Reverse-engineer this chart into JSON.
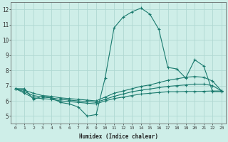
{
  "xlabel": "Humidex (Indice chaleur)",
  "ylabel": "",
  "background_color": "#ceeee8",
  "grid_color": "#b0d8d2",
  "line_color": "#1a7a6e",
  "xlim": [
    -0.5,
    23.5
  ],
  "ylim": [
    4.5,
    12.5
  ],
  "yticks": [
    5,
    6,
    7,
    8,
    9,
    10,
    11,
    12
  ],
  "xticks": [
    0,
    1,
    2,
    3,
    4,
    5,
    6,
    7,
    8,
    9,
    10,
    11,
    12,
    13,
    14,
    15,
    16,
    17,
    18,
    19,
    20,
    21,
    22,
    23
  ],
  "lines": [
    {
      "x": [
        0,
        1,
        2,
        3,
        4,
        5,
        6,
        7,
        8,
        9,
        10,
        11,
        12,
        13,
        14,
        15,
        16,
        17,
        18,
        19,
        20,
        21,
        22,
        23
      ],
      "y": [
        6.8,
        6.8,
        6.1,
        6.3,
        6.2,
        5.9,
        5.8,
        5.6,
        5.0,
        5.1,
        7.5,
        10.8,
        11.5,
        11.85,
        12.1,
        11.7,
        10.7,
        8.2,
        8.1,
        7.5,
        8.7,
        8.3,
        6.6,
        6.6
      ]
    },
    {
      "x": [
        0,
        1,
        2,
        3,
        4,
        5,
        6,
        7,
        8,
        9,
        10,
        11,
        12,
        13,
        14,
        15,
        16,
        17,
        18,
        19,
        20,
        21,
        22,
        23
      ],
      "y": [
        6.8,
        6.5,
        6.2,
        6.15,
        6.1,
        6.0,
        5.95,
        5.9,
        5.85,
        5.8,
        6.0,
        6.15,
        6.25,
        6.35,
        6.45,
        6.5,
        6.55,
        6.6,
        6.6,
        6.62,
        6.62,
        6.63,
        6.65,
        6.65
      ]
    },
    {
      "x": [
        0,
        1,
        2,
        3,
        4,
        5,
        6,
        7,
        8,
        9,
        10,
        11,
        12,
        13,
        14,
        15,
        16,
        17,
        18,
        19,
        20,
        21,
        22,
        23
      ],
      "y": [
        6.8,
        6.6,
        6.35,
        6.25,
        6.2,
        6.1,
        6.05,
        6.0,
        5.95,
        5.9,
        6.1,
        6.3,
        6.45,
        6.6,
        6.7,
        6.78,
        6.87,
        6.95,
        7.0,
        7.05,
        7.1,
        7.1,
        7.0,
        6.65
      ]
    },
    {
      "x": [
        0,
        1,
        2,
        3,
        4,
        5,
        6,
        7,
        8,
        9,
        10,
        11,
        12,
        13,
        14,
        15,
        16,
        17,
        18,
        19,
        20,
        21,
        22,
        23
      ],
      "y": [
        6.8,
        6.7,
        6.5,
        6.35,
        6.3,
        6.2,
        6.15,
        6.1,
        6.05,
        6.0,
        6.25,
        6.5,
        6.65,
        6.8,
        6.95,
        7.05,
        7.2,
        7.35,
        7.45,
        7.55,
        7.6,
        7.55,
        7.3,
        6.65
      ]
    }
  ]
}
